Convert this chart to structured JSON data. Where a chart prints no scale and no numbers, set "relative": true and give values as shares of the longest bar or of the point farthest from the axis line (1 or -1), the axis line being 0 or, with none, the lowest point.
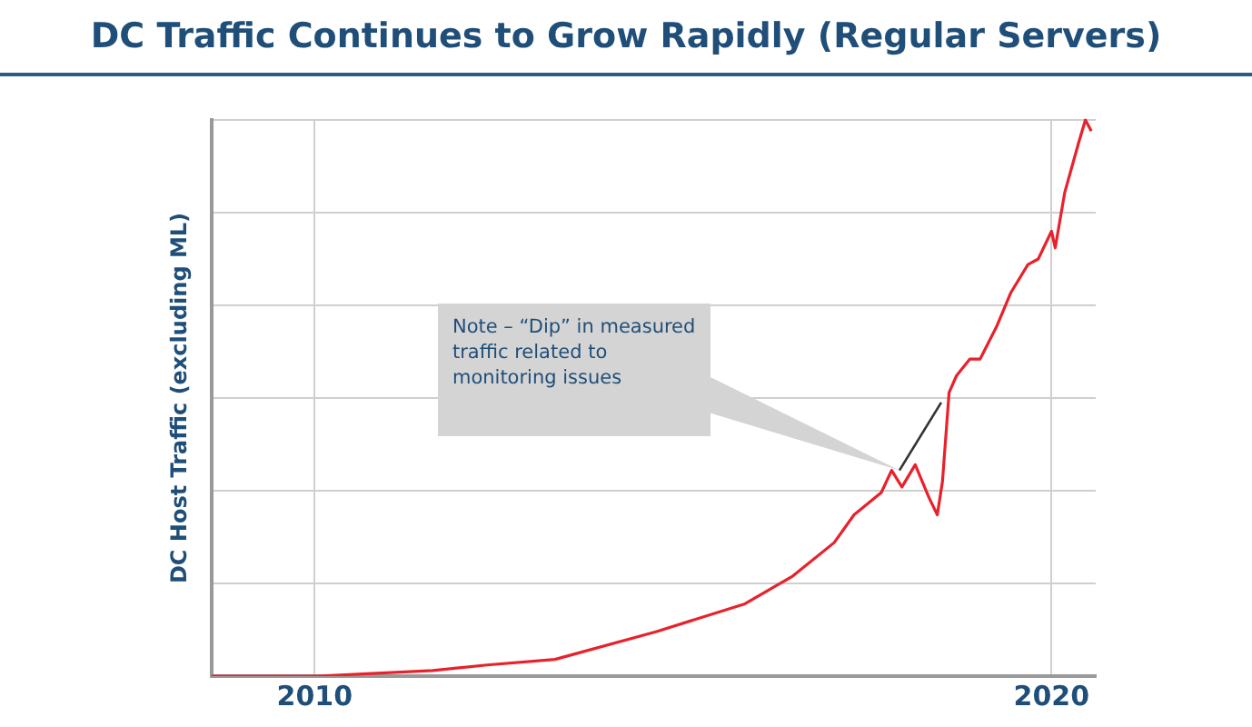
{
  "chart_data": {
    "type": "line",
    "title": "DC Traffic Continues to Grow Rapidly (Regular Servers)",
    "ylabel": "DC Host Traffic (excluding ML)",
    "relative": true,
    "xlim": [
      2008.6,
      2020.6
    ],
    "xticks": [
      2010,
      2020
    ],
    "grid": true,
    "marker": "none",
    "line_style": "solid",
    "annotations": [
      "Note – “Dip” in measured traffic related to monitoring issues"
    ],
    "series": [
      {
        "color": "#e8212b",
        "x": [
          2008.6,
          2010.03,
          2011.6,
          2012.34,
          2013.26,
          2014.64,
          2015.84,
          2016.49,
          2017.05,
          2017.32,
          2017.69,
          2017.83,
          2017.97,
          2018.15,
          2018.34,
          2018.45,
          2018.52,
          2018.61,
          2018.71,
          2018.89,
          2019.03,
          2019.26,
          2019.45,
          2019.68,
          2019.82,
          2020.0,
          2020.05,
          2020.18,
          2020.37,
          2020.46,
          2020.54
        ],
        "values": [
          0,
          0,
          0.01,
          0.02,
          0.03,
          0.08,
          0.13,
          0.18,
          0.24,
          0.29,
          0.33,
          0.37,
          0.34,
          0.38,
          0.32,
          0.29,
          0.35,
          0.51,
          0.54,
          0.57,
          0.57,
          0.63,
          0.69,
          0.74,
          0.75,
          0.8,
          0.77,
          0.87,
          0.96,
          1,
          0.98
        ]
      }
    ]
  }
}
